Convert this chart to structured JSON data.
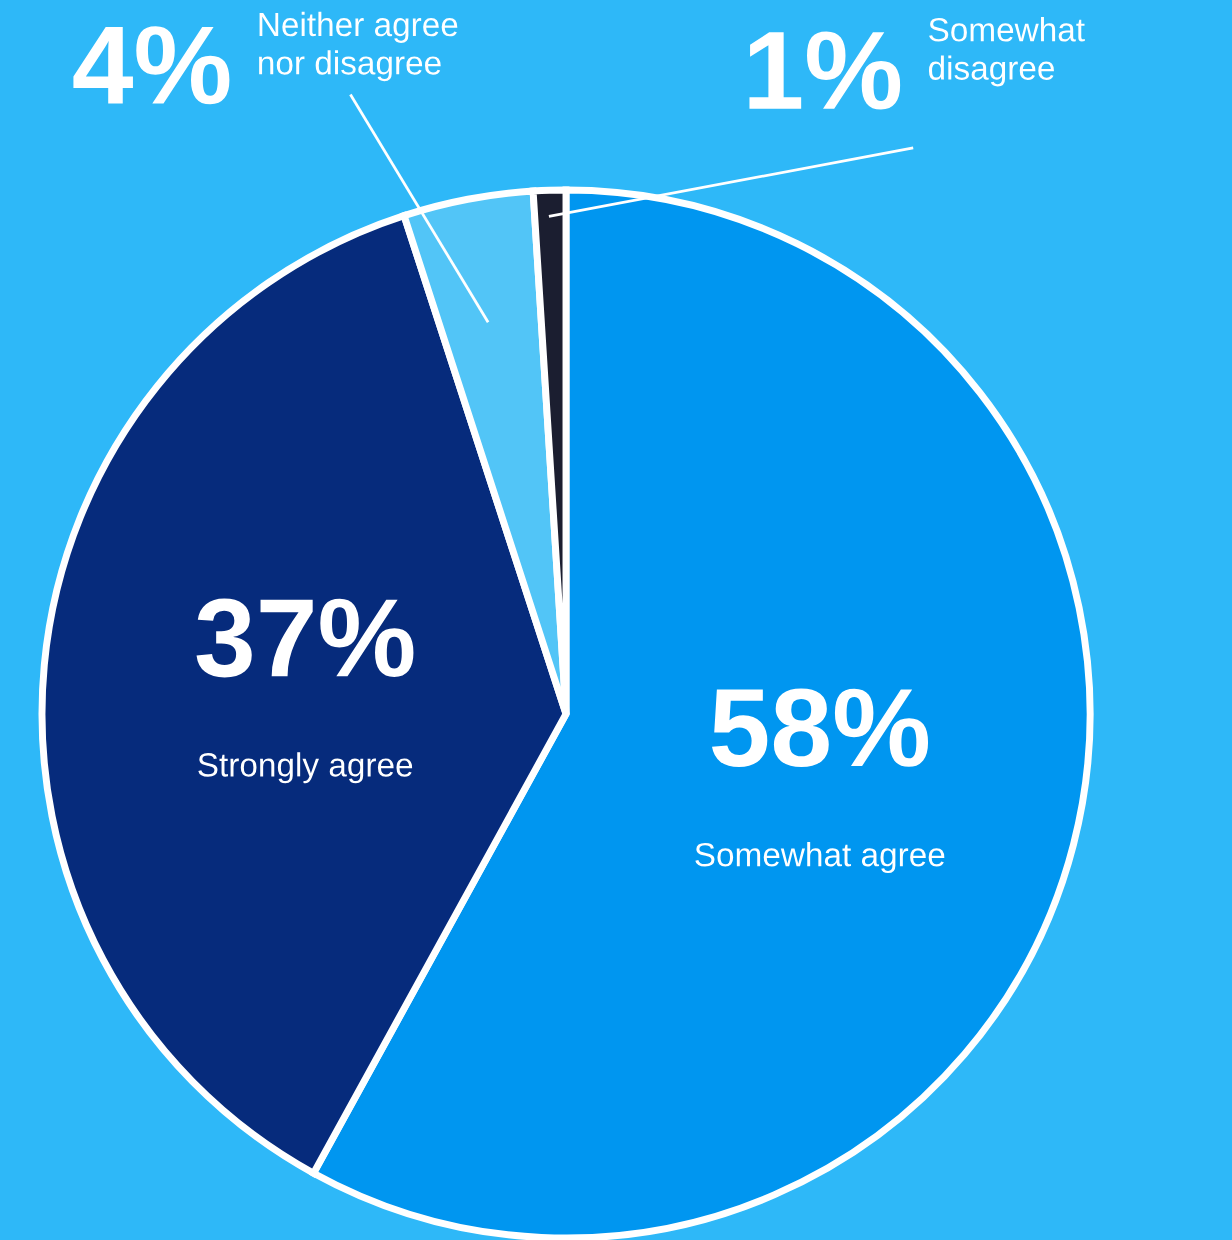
{
  "chart_data": {
    "type": "pie",
    "categories": [
      "Somewhat agree",
      "Strongly agree",
      "Neither agree\nnor disagree",
      "Somewhat\ndisagree"
    ],
    "values": [
      58,
      37,
      4,
      1
    ],
    "colors": [
      "#0096f0",
      "#062b7c",
      "#52c5f7",
      "#1b1e30"
    ],
    "value_labels": [
      "58%",
      "37%",
      "4%",
      "1%"
    ]
  }
}
